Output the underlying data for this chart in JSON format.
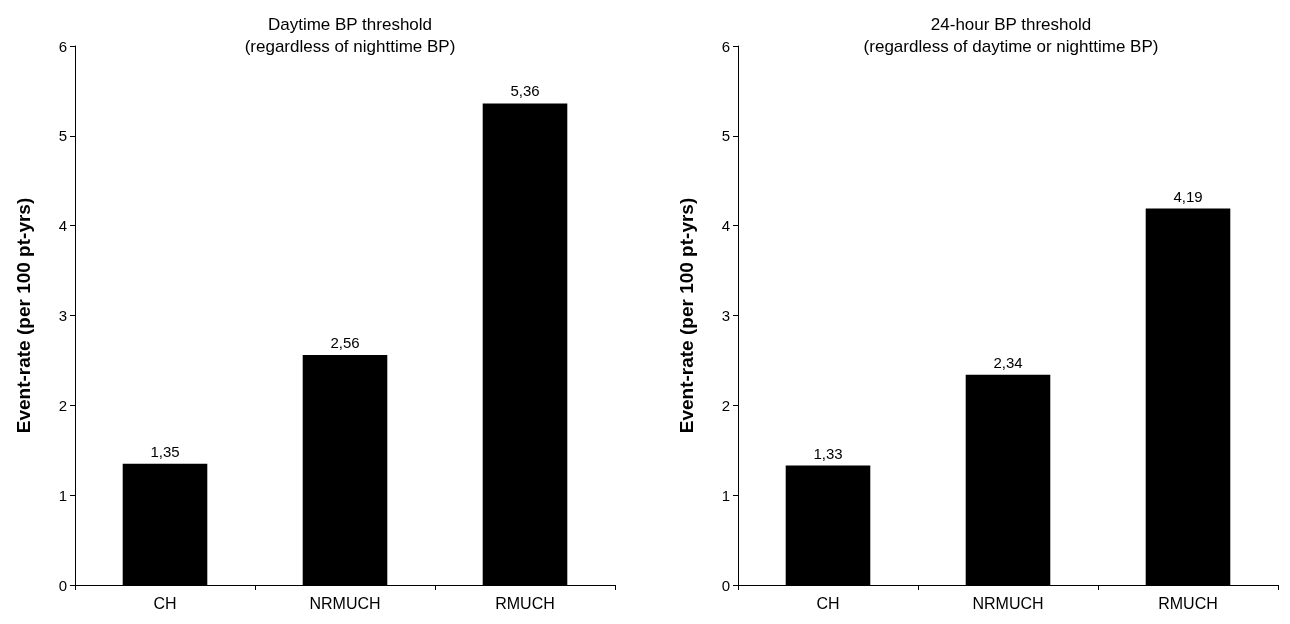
{
  "chart_data": [
    {
      "type": "bar",
      "title": "Daytime BP threshold\n(regardless of nighttime BP)",
      "ylabel": "Event-rate (per 100 pt-yrs)",
      "categories": [
        "CH",
        "NRMUCH",
        "RMUCH"
      ],
      "values": [
        1.35,
        2.56,
        5.36
      ],
      "value_labels": [
        "1,35",
        "2,56",
        "5,36"
      ],
      "color": "#000000",
      "ylim": [
        0,
        6
      ],
      "yticks": [
        0,
        1,
        2,
        3,
        4,
        5,
        6
      ]
    },
    {
      "type": "bar",
      "title": "24-hour BP threshold\n(regardless of daytime or nighttime BP)",
      "ylabel": "Event-rate (per 100 pt-yrs)",
      "categories": [
        "CH",
        "NRMUCH",
        "RMUCH"
      ],
      "values": [
        1.33,
        2.34,
        4.19
      ],
      "value_labels": [
        "1,33",
        "2,34",
        "4,19"
      ],
      "color": "#000000",
      "ylim": [
        0,
        6
      ],
      "yticks": [
        0,
        1,
        2,
        3,
        4,
        5,
        6
      ]
    }
  ]
}
